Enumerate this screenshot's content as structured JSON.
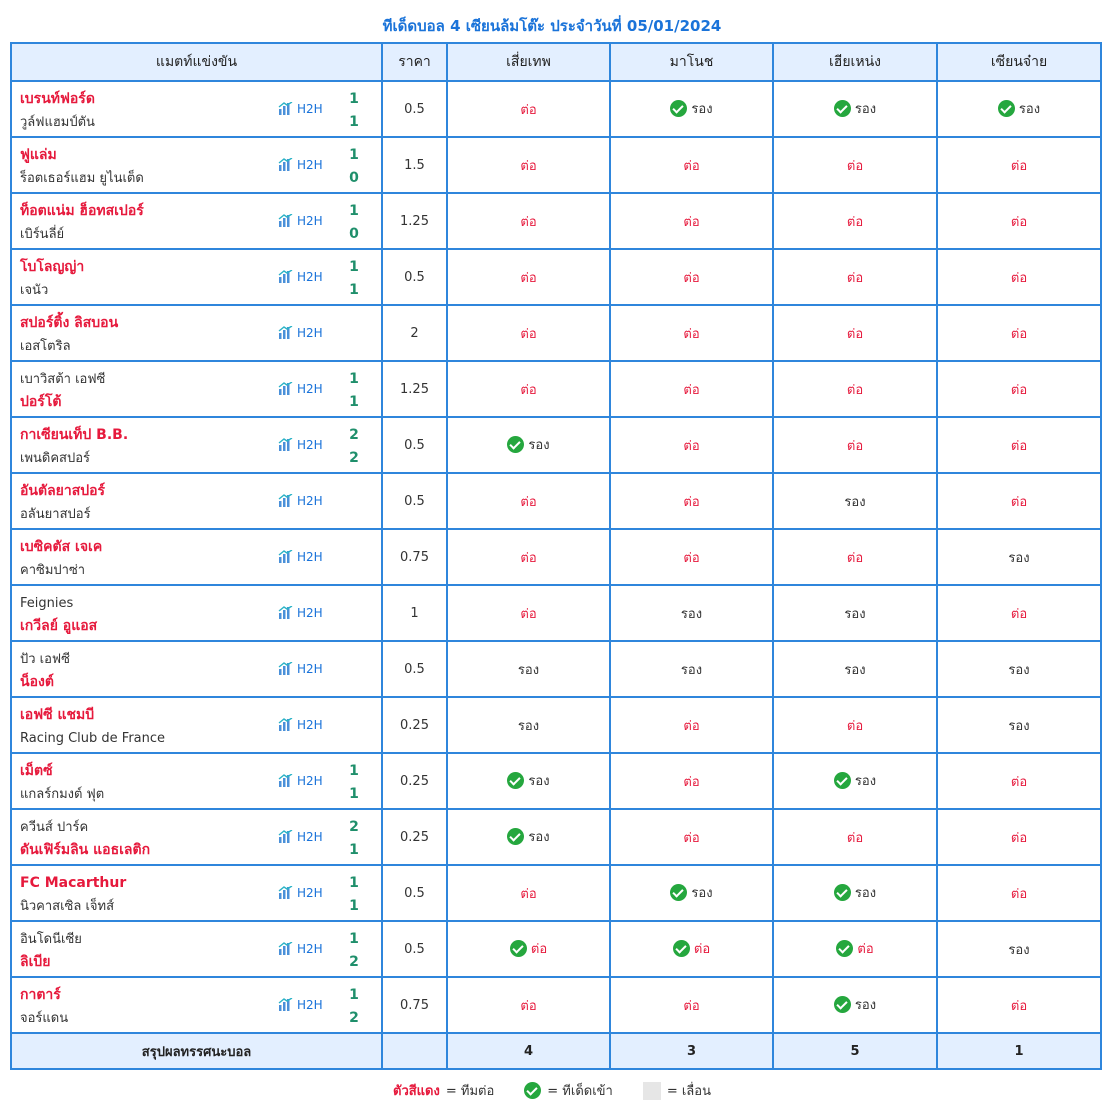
{
  "title": "ทีเด็ดบอล 4 เซียนล้มโต๊ะ ประจำวันที่ 05/01/2024",
  "headers": {
    "match": "แมตท์แข่งขัน",
    "price": "ราคา",
    "expert1": "เสี่ยเทพ",
    "expert2": "มาโนช",
    "expert3": "เฮียเหน่ง",
    "expert4": "เซียนจ๋าย"
  },
  "h2h_label": "H2H",
  "rows": [
    {
      "home": "เบรนท์ฟอร์ด",
      "away": "วูล์ฟแฮมป์ตัน",
      "fav": "home",
      "hs": "1",
      "as": "1",
      "price": "0.5",
      "p1": "ต่อ",
      "c1": false,
      "t1": "take",
      "p2": "รอง",
      "c2": true,
      "t2": "under",
      "p3": "รอง",
      "c3": true,
      "t3": "under",
      "p4": "รอง",
      "c4": true,
      "t4": "under"
    },
    {
      "home": "ฟูแล่ม",
      "away": "ร็อตเธอร์แฮม ยูไนเต็ด",
      "fav": "home",
      "hs": "1",
      "as": "0",
      "price": "1.5",
      "p1": "ต่อ",
      "c1": false,
      "t1": "take",
      "p2": "ต่อ",
      "c2": false,
      "t2": "take",
      "p3": "ต่อ",
      "c3": false,
      "t3": "take",
      "p4": "ต่อ",
      "c4": false,
      "t4": "take"
    },
    {
      "home": "ท็อตแน่ม ฮ็อทสเปอร์",
      "away": "เบิร์นลี่ย์",
      "fav": "home",
      "hs": "1",
      "as": "0",
      "price": "1.25",
      "p1": "ต่อ",
      "c1": false,
      "t1": "take",
      "p2": "ต่อ",
      "c2": false,
      "t2": "take",
      "p3": "ต่อ",
      "c3": false,
      "t3": "take",
      "p4": "ต่อ",
      "c4": false,
      "t4": "take"
    },
    {
      "home": "โบโลญญ่า",
      "away": "เจนัว",
      "fav": "home",
      "hs": "1",
      "as": "1",
      "price": "0.5",
      "p1": "ต่อ",
      "c1": false,
      "t1": "take",
      "p2": "ต่อ",
      "c2": false,
      "t2": "take",
      "p3": "ต่อ",
      "c3": false,
      "t3": "take",
      "p4": "ต่อ",
      "c4": false,
      "t4": "take"
    },
    {
      "home": "สปอร์ติ้ง ลิสบอน",
      "away": "เอสโตริล",
      "fav": "home",
      "hs": "",
      "as": "",
      "price": "2",
      "p1": "ต่อ",
      "c1": false,
      "t1": "take",
      "p2": "ต่อ",
      "c2": false,
      "t2": "take",
      "p3": "ต่อ",
      "c3": false,
      "t3": "take",
      "p4": "ต่อ",
      "c4": false,
      "t4": "take"
    },
    {
      "home": "เบาวิสต้า เอฟซี",
      "away": "ปอร์โต้",
      "fav": "away",
      "hs": "1",
      "as": "1",
      "price": "1.25",
      "p1": "ต่อ",
      "c1": false,
      "t1": "take",
      "p2": "ต่อ",
      "c2": false,
      "t2": "take",
      "p3": "ต่อ",
      "c3": false,
      "t3": "take",
      "p4": "ต่อ",
      "c4": false,
      "t4": "take"
    },
    {
      "home": "กาเซียนเท็ป B.B.",
      "away": "เพนดิคสปอร์",
      "fav": "home",
      "hs": "2",
      "as": "2",
      "price": "0.5",
      "p1": "รอง",
      "c1": true,
      "t1": "under",
      "p2": "ต่อ",
      "c2": false,
      "t2": "take",
      "p3": "ต่อ",
      "c3": false,
      "t3": "take",
      "p4": "ต่อ",
      "c4": false,
      "t4": "take"
    },
    {
      "home": "อันตัลยาสปอร์",
      "away": "อลันยาสปอร์",
      "fav": "home",
      "hs": "",
      "as": "",
      "price": "0.5",
      "p1": "ต่อ",
      "c1": false,
      "t1": "take",
      "p2": "ต่อ",
      "c2": false,
      "t2": "take",
      "p3": "รอง",
      "c3": false,
      "t3": "under",
      "p4": "ต่อ",
      "c4": false,
      "t4": "take"
    },
    {
      "home": "เบซิคตัส เจเค",
      "away": "คาซิมปาซ่า",
      "fav": "home",
      "hs": "",
      "as": "",
      "price": "0.75",
      "p1": "ต่อ",
      "c1": false,
      "t1": "take",
      "p2": "ต่อ",
      "c2": false,
      "t2": "take",
      "p3": "ต่อ",
      "c3": false,
      "t3": "take",
      "p4": "รอง",
      "c4": false,
      "t4": "under"
    },
    {
      "home": "Feignies",
      "away": "เกวีลย์ อูแอส",
      "fav": "away",
      "hs": "",
      "as": "",
      "price": "1",
      "p1": "ต่อ",
      "c1": false,
      "t1": "take",
      "p2": "รอง",
      "c2": false,
      "t2": "under",
      "p3": "รอง",
      "c3": false,
      "t3": "under",
      "p4": "ต่อ",
      "c4": false,
      "t4": "take"
    },
    {
      "home": "ปัว เอฟซี",
      "away": "น็องต์",
      "fav": "away",
      "hs": "",
      "as": "",
      "price": "0.5",
      "p1": "รอง",
      "c1": false,
      "t1": "under",
      "p2": "รอง",
      "c2": false,
      "t2": "under",
      "p3": "รอง",
      "c3": false,
      "t3": "under",
      "p4": "รอง",
      "c4": false,
      "t4": "under"
    },
    {
      "home": "เอฟซี แชมบี",
      "away": "Racing Club de France",
      "fav": "home",
      "hs": "",
      "as": "",
      "price": "0.25",
      "p1": "รอง",
      "c1": false,
      "t1": "under",
      "p2": "ต่อ",
      "c2": false,
      "t2": "take",
      "p3": "ต่อ",
      "c3": false,
      "t3": "take",
      "p4": "รอง",
      "c4": false,
      "t4": "under"
    },
    {
      "home": "เม็ตซ์",
      "away": "แกลร์กมงต์ ฟุต",
      "fav": "home",
      "hs": "1",
      "as": "1",
      "price": "0.25",
      "p1": "รอง",
      "c1": true,
      "t1": "under",
      "p2": "ต่อ",
      "c2": false,
      "t2": "take",
      "p3": "รอง",
      "c3": true,
      "t3": "under",
      "p4": "ต่อ",
      "c4": false,
      "t4": "take"
    },
    {
      "home": "ควีนส์ ปาร์ค",
      "away": "ดันเฟิร์มลิน แอธเลติก",
      "fav": "away",
      "hs": "2",
      "as": "1",
      "price": "0.25",
      "p1": "รอง",
      "c1": true,
      "t1": "under",
      "p2": "ต่อ",
      "c2": false,
      "t2": "take",
      "p3": "ต่อ",
      "c3": false,
      "t3": "take",
      "p4": "ต่อ",
      "c4": false,
      "t4": "take"
    },
    {
      "home": "FC Macarthur",
      "away": "นิวคาสเซิล เจ็ทส์",
      "fav": "home",
      "hs": "1",
      "as": "1",
      "price": "0.5",
      "p1": "ต่อ",
      "c1": false,
      "t1": "take",
      "p2": "รอง",
      "c2": true,
      "t2": "under",
      "p3": "รอง",
      "c3": true,
      "t3": "under",
      "p4": "ต่อ",
      "c4": false,
      "t4": "take"
    },
    {
      "home": "อินโดนีเซีย",
      "away": "ลิเบีย",
      "fav": "away",
      "hs": "1",
      "as": "2",
      "price": "0.5",
      "p1": "ต่อ",
      "c1": true,
      "t1": "take",
      "p2": "ต่อ",
      "c2": true,
      "t2": "take",
      "p3": "ต่อ",
      "c3": true,
      "t3": "take",
      "p4": "รอง",
      "c4": false,
      "t4": "under"
    },
    {
      "home": "กาตาร์",
      "away": "จอร์แดน",
      "fav": "home",
      "hs": "1",
      "as": "2",
      "price": "0.75",
      "p1": "ต่อ",
      "c1": false,
      "t1": "take",
      "p2": "ต่อ",
      "c2": false,
      "t2": "take",
      "p3": "รอง",
      "c3": true,
      "t3": "under",
      "p4": "ต่อ",
      "c4": false,
      "t4": "take"
    }
  ],
  "summary": {
    "label": "สรุปผลทรรศนะบอล",
    "price": "",
    "expert1": "4",
    "expert2": "3",
    "expert3": "5",
    "expert4": "1"
  },
  "legend": {
    "red_text": "ตัวสีแดง",
    "red_desc": "= ทีมต่อ",
    "check_desc": "= ทีเด็ดเข้า",
    "gray_desc": "= เลื่อน"
  },
  "colors": {
    "favorite": "#e6193c",
    "border": "#2f86dc",
    "header_bg": "#e3efff",
    "check": "#25a73e",
    "score": "#1f8f6b"
  }
}
